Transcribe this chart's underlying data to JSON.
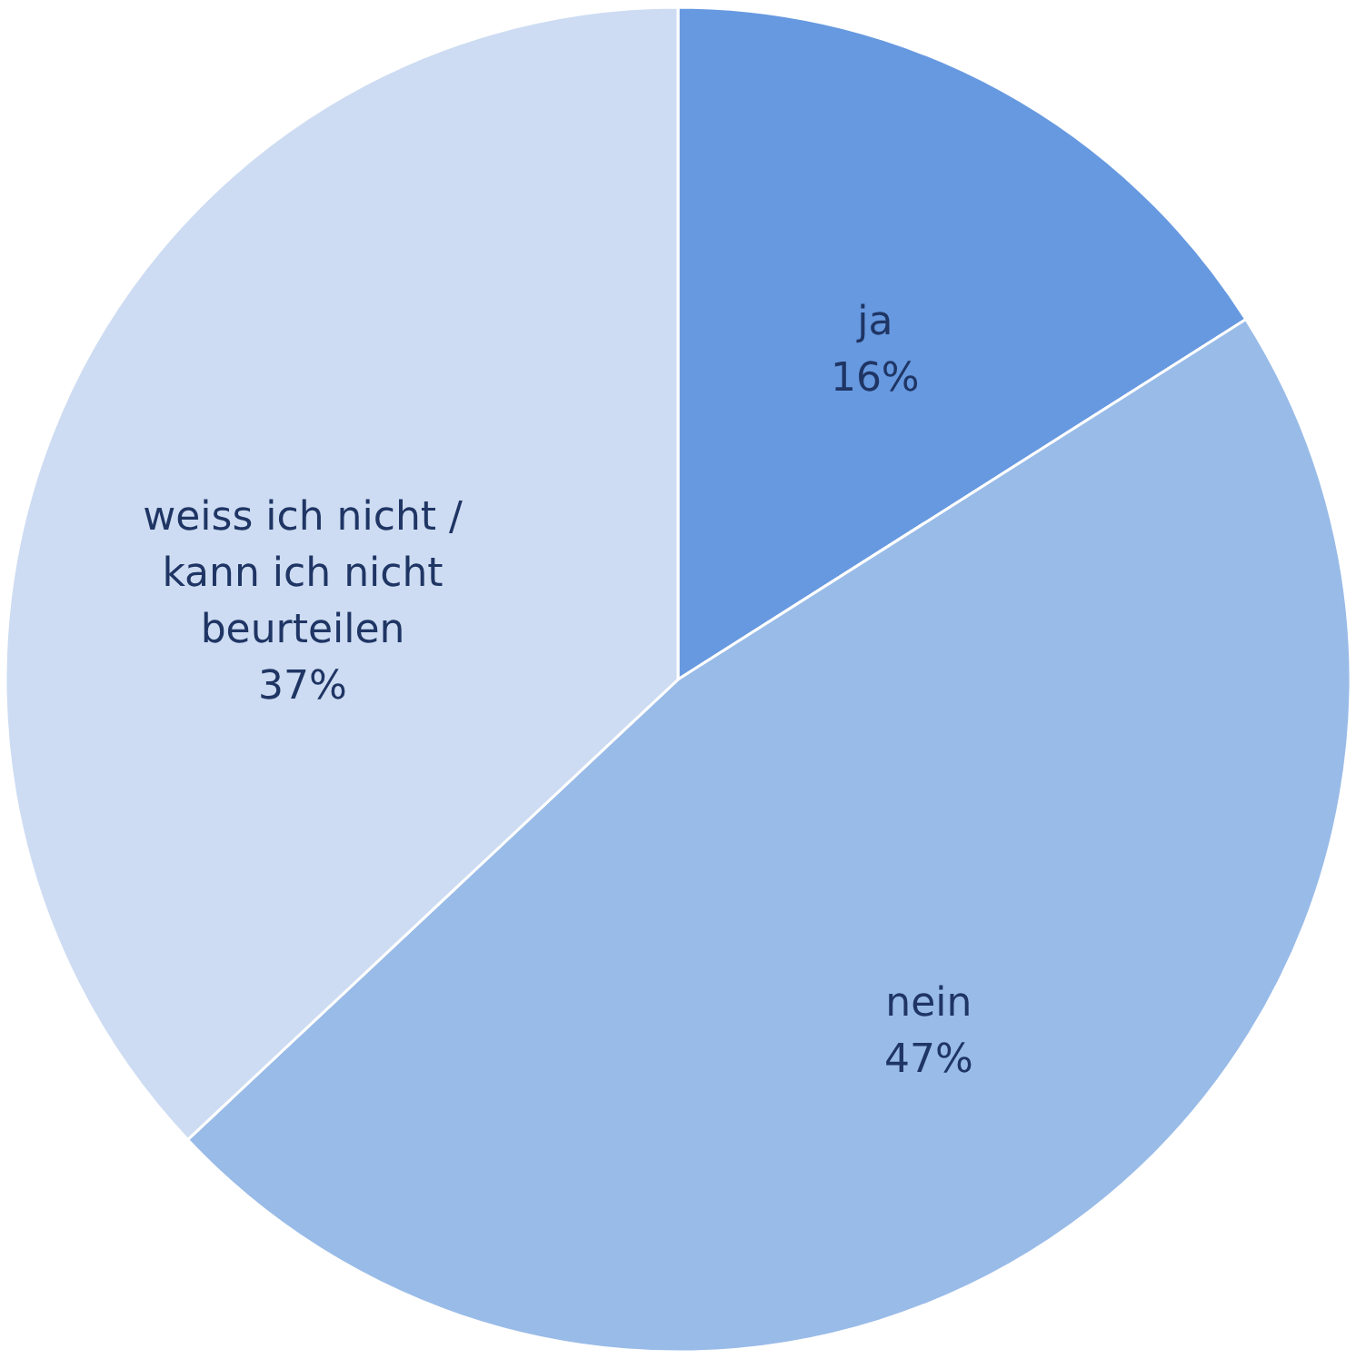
{
  "chart_data": {
    "type": "pie",
    "categories": [
      "ja",
      "nein",
      "weiss ich nicht / kann ich nicht beurteilen"
    ],
    "values": [
      16,
      47,
      37
    ],
    "value_labels": [
      "16%",
      "47%",
      "37%"
    ],
    "colors": [
      "#6799e0",
      "#99bbe8",
      "#cddcf2"
    ],
    "legend": false
  }
}
